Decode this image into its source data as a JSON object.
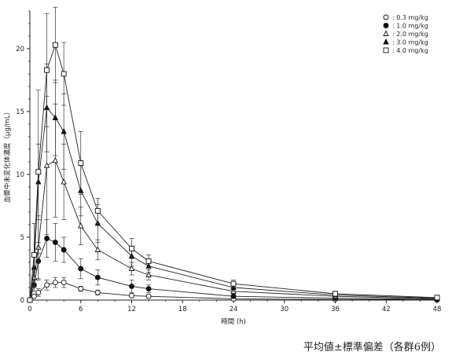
{
  "chart_data": {
    "type": "line",
    "title": "",
    "xlabel": "時間 (h)",
    "ylabel": "血漿中未変化体濃度（μg/mL）",
    "xlim": [
      0,
      48
    ],
    "ylim": [
      0,
      23
    ],
    "xticks": [
      "0",
      "6",
      "12",
      "18",
      "24",
      "30",
      "36",
      "42",
      "48"
    ],
    "yticks": [
      "0",
      "5",
      "10",
      "15",
      "20"
    ],
    "legend_position": "top-right",
    "x": [
      0,
      0.5,
      1,
      2,
      3,
      4,
      6,
      8,
      12,
      14,
      24,
      36,
      48
    ],
    "series": [
      {
        "name": "0.3 mg/kg",
        "marker": "circle-open",
        "values": [
          0,
          0.3,
          0.6,
          1.2,
          1.4,
          1.4,
          0.9,
          0.6,
          0.35,
          0.3,
          0.1,
          0.05,
          0.02
        ],
        "errors": [
          0,
          0.1,
          0.3,
          0.4,
          0.4,
          0.4,
          0.2,
          0.2,
          0.15,
          0.1,
          0.05,
          0.03,
          0.02
        ]
      },
      {
        "name": "1.0 mg/kg",
        "marker": "circle-filled",
        "values": [
          0,
          1.2,
          3.1,
          4.9,
          4.6,
          4.0,
          2.5,
          1.8,
          1.1,
          0.9,
          0.3,
          0.15,
          0.05
        ],
        "errors": [
          0,
          0.5,
          1.5,
          1.5,
          1.5,
          1.0,
          0.8,
          0.6,
          0.5,
          0.3,
          0.1,
          0.05,
          0.03
        ]
      },
      {
        "name": "2.0 mg/kg",
        "marker": "triangle-open",
        "values": [
          0,
          1.8,
          4.2,
          10.7,
          11.1,
          9.4,
          5.9,
          4.0,
          2.5,
          2.0,
          0.7,
          0.3,
          0.1
        ],
        "errors": [
          0,
          0.8,
          2.5,
          5.5,
          4.5,
          3.0,
          1.5,
          0.8,
          0.5,
          0.4,
          0.2,
          0.1,
          0.05
        ]
      },
      {
        "name": "3.0 mg/kg",
        "marker": "triangle-filled",
        "values": [
          0,
          2.6,
          9.4,
          15.3,
          14.5,
          13.4,
          8.7,
          6.1,
          3.5,
          2.7,
          1.0,
          0.4,
          0.15
        ],
        "errors": [
          0,
          1.0,
          3.0,
          3.5,
          3.0,
          3.0,
          2.0,
          1.5,
          0.8,
          0.5,
          0.3,
          0.15,
          0.05
        ]
      },
      {
        "name": "4.0 mg/kg",
        "marker": "square-open",
        "values": [
          0,
          3.6,
          10.2,
          18.3,
          20.3,
          18.0,
          10.9,
          7.1,
          4.1,
          3.1,
          1.3,
          0.5,
          0.2
        ],
        "errors": [
          0,
          2.5,
          6.5,
          4.5,
          3.0,
          2.5,
          2.5,
          1.0,
          0.8,
          0.5,
          0.3,
          0.2,
          0.1
        ]
      }
    ]
  },
  "footnote": "平均値±標準偏差（各群6例）"
}
